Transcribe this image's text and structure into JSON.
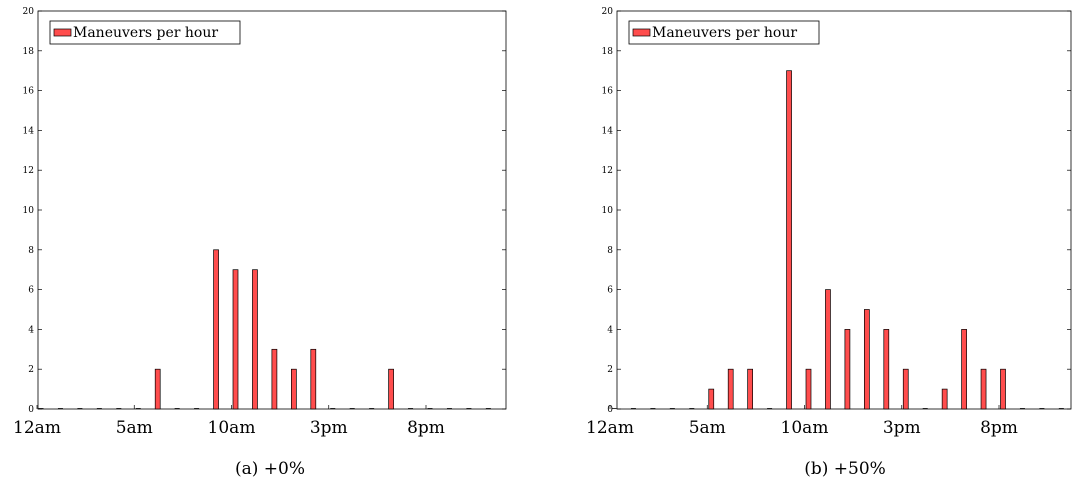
{
  "chart_data": [
    {
      "type": "bar",
      "caption": "(a) +0%",
      "legend": "Maneuvers per hour",
      "legend_position": "top-left",
      "x_tick_labels": [
        "12am",
        "5am",
        "10am",
        "3pm",
        "8pm"
      ],
      "x_tick_hours": [
        0,
        5,
        10,
        15,
        20
      ],
      "ylim": [
        0,
        20
      ],
      "y_ticks": [
        0,
        2,
        4,
        6,
        8,
        10,
        12,
        14,
        16,
        18,
        20
      ],
      "grid": false,
      "series": [
        {
          "name": "Maneuvers per hour",
          "hours": [
            0,
            1,
            2,
            3,
            4,
            5,
            6,
            7,
            8,
            9,
            10,
            11,
            12,
            13,
            14,
            15,
            16,
            17,
            18,
            19,
            20,
            21,
            22,
            23
          ],
          "values": [
            0,
            0,
            0,
            0,
            0,
            0,
            2,
            0,
            0,
            8,
            7,
            7,
            3,
            2,
            3,
            0,
            0,
            0,
            2,
            0,
            0,
            0,
            0,
            0
          ]
        }
      ],
      "color": "#ff4d4d"
    },
    {
      "type": "bar",
      "caption": "(b) +50%",
      "legend": "Maneuvers per hour",
      "legend_position": "top-left",
      "x_tick_labels": [
        "12am",
        "5am",
        "10am",
        "3pm",
        "8pm"
      ],
      "x_tick_hours": [
        0,
        5,
        10,
        15,
        20
      ],
      "ylim": [
        0,
        20
      ],
      "y_ticks": [
        0,
        2,
        4,
        6,
        8,
        10,
        12,
        14,
        16,
        18,
        20
      ],
      "grid": false,
      "series": [
        {
          "name": "Maneuvers per hour",
          "hours": [
            0,
            1,
            2,
            3,
            4,
            5,
            6,
            7,
            8,
            9,
            10,
            11,
            12,
            13,
            14,
            15,
            16,
            17,
            18,
            19,
            20,
            21,
            22,
            23
          ],
          "values": [
            0,
            0,
            0,
            0,
            0,
            1,
            2,
            2,
            0,
            17,
            2,
            6,
            4,
            5,
            4,
            2,
            0,
            1,
            4,
            2,
            2,
            0,
            0,
            0
          ]
        }
      ],
      "color": "#ff4d4d"
    }
  ]
}
